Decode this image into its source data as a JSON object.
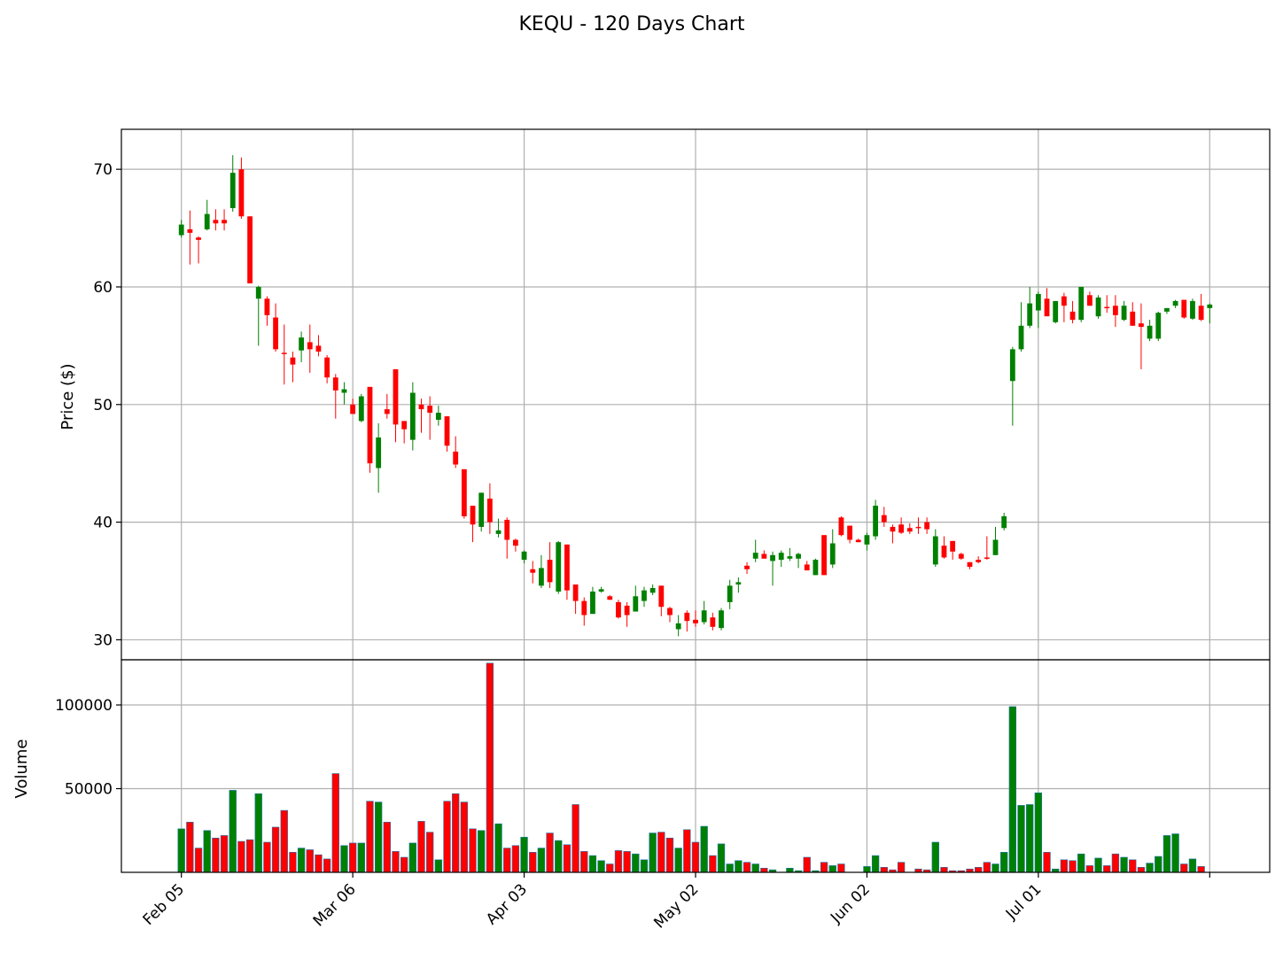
{
  "title": "KEQU - 120 Days Chart",
  "colors": {
    "up": "#008000",
    "down": "#ff0000",
    "grid": "#b0b0b0",
    "volume_edge": "#1f77b4"
  },
  "chart_data": [
    {
      "type": "candlestick",
      "ylabel": "Price ($)",
      "ylim": [
        28.3,
        73.4
      ],
      "yticks": [
        30,
        40,
        50,
        60,
        70
      ],
      "x_range": [
        -7,
        127
      ],
      "xticks": [
        {
          "index": 0,
          "label": "Feb 05"
        },
        {
          "index": 20,
          "label": "Mar 06"
        },
        {
          "index": 40,
          "label": "Apr 03"
        },
        {
          "index": 60,
          "label": "May 02"
        },
        {
          "index": 80,
          "label": "Jun 02"
        },
        {
          "index": 100,
          "label": "Jul 01"
        },
        {
          "index": 120,
          "label": ""
        }
      ],
      "grid": true,
      "ohlc": [
        [
          64.4,
          65.7,
          64.2,
          65.3
        ],
        [
          64.9,
          66.5,
          61.9,
          64.6
        ],
        [
          64.2,
          64.3,
          62.0,
          64.0
        ],
        [
          64.9,
          67.4,
          64.8,
          66.2
        ],
        [
          65.7,
          66.6,
          64.8,
          65.4
        ],
        [
          65.7,
          66.6,
          64.8,
          65.4
        ],
        [
          66.7,
          71.2,
          66.4,
          69.7
        ],
        [
          70.0,
          71.0,
          65.8,
          66.0
        ],
        [
          66.0,
          66.0,
          60.3,
          60.3
        ],
        [
          59.0,
          60.1,
          55.0,
          60.0
        ],
        [
          59.0,
          59.2,
          56.7,
          57.6
        ],
        [
          57.4,
          58.6,
          54.5,
          54.7
        ],
        [
          54.4,
          56.8,
          51.7,
          54.3
        ],
        [
          54.0,
          54.5,
          51.9,
          53.4
        ],
        [
          54.6,
          56.2,
          53.6,
          55.7
        ],
        [
          55.3,
          56.8,
          52.7,
          54.7
        ],
        [
          55.0,
          55.9,
          54.1,
          54.5
        ],
        [
          54.0,
          54.2,
          51.8,
          52.3
        ],
        [
          52.3,
          52.6,
          48.8,
          51.2
        ],
        [
          51.0,
          51.9,
          50.0,
          51.3
        ],
        [
          50.0,
          50.5,
          49.2,
          49.2
        ],
        [
          48.6,
          50.9,
          48.5,
          50.7
        ],
        [
          51.5,
          51.5,
          44.2,
          45.0
        ],
        [
          44.6,
          48.4,
          42.5,
          47.2
        ],
        [
          49.6,
          50.9,
          48.8,
          49.2
        ],
        [
          53.0,
          53.0,
          46.8,
          48.3
        ],
        [
          48.6,
          48.6,
          46.7,
          47.9
        ],
        [
          47.0,
          51.9,
          46.1,
          51.0
        ],
        [
          50.0,
          50.5,
          47.6,
          49.6
        ],
        [
          49.9,
          50.7,
          47.0,
          49.3
        ],
        [
          48.7,
          49.9,
          48.2,
          49.3
        ],
        [
          49.0,
          49.0,
          46.0,
          46.5
        ],
        [
          46.0,
          47.3,
          44.6,
          44.9
        ],
        [
          44.5,
          44.5,
          40.3,
          40.5
        ],
        [
          41.4,
          41.4,
          38.3,
          39.8
        ],
        [
          39.6,
          42.5,
          39.2,
          42.5
        ],
        [
          42.0,
          43.3,
          39.0,
          40.0
        ],
        [
          39.0,
          40.3,
          38.7,
          39.3
        ],
        [
          40.2,
          40.4,
          36.9,
          38.5
        ],
        [
          38.5,
          38.6,
          37.5,
          38.0
        ],
        [
          36.8,
          37.6,
          36.5,
          37.5
        ],
        [
          36.0,
          36.7,
          34.8,
          35.7
        ],
        [
          34.6,
          37.2,
          34.4,
          36.1
        ],
        [
          36.8,
          38.3,
          34.4,
          34.9
        ],
        [
          34.1,
          38.4,
          33.9,
          38.3
        ],
        [
          38.1,
          38.1,
          33.4,
          34.2
        ],
        [
          34.7,
          34.7,
          32.2,
          33.3
        ],
        [
          33.3,
          33.6,
          31.2,
          32.1
        ],
        [
          32.2,
          34.5,
          32.2,
          34.1
        ],
        [
          34.1,
          34.5,
          34.0,
          34.3
        ],
        [
          33.7,
          33.8,
          33.4,
          33.4
        ],
        [
          33.2,
          33.4,
          31.8,
          31.9
        ],
        [
          32.9,
          33.2,
          31.1,
          32.1
        ],
        [
          32.4,
          34.6,
          32.4,
          33.7
        ],
        [
          33.3,
          34.5,
          32.8,
          34.2
        ],
        [
          34.0,
          34.7,
          33.8,
          34.4
        ],
        [
          34.6,
          34.6,
          32.0,
          32.8
        ],
        [
          32.7,
          32.8,
          31.5,
          32.1
        ],
        [
          30.9,
          32.1,
          30.3,
          31.4
        ],
        [
          32.3,
          32.5,
          30.7,
          31.6
        ],
        [
          31.7,
          32.5,
          31.1,
          31.4
        ],
        [
          31.5,
          33.3,
          31.3,
          32.5
        ],
        [
          31.9,
          32.3,
          30.8,
          31.1
        ],
        [
          31.0,
          32.7,
          30.8,
          32.5
        ],
        [
          33.2,
          35.1,
          32.6,
          34.6
        ],
        [
          34.7,
          35.3,
          34.0,
          34.9
        ],
        [
          36.3,
          36.6,
          35.6,
          36.0
        ],
        [
          36.9,
          38.5,
          36.6,
          37.4
        ],
        [
          37.3,
          37.6,
          37.2,
          36.9
        ],
        [
          36.7,
          37.5,
          34.6,
          37.2
        ],
        [
          36.8,
          37.6,
          36.2,
          37.4
        ],
        [
          36.9,
          37.8,
          36.7,
          37.1
        ],
        [
          36.9,
          37.4,
          36.1,
          37.3
        ],
        [
          36.4,
          36.7,
          35.9,
          35.9
        ],
        [
          35.5,
          36.9,
          35.5,
          36.8
        ],
        [
          38.9,
          38.9,
          35.5,
          35.5
        ],
        [
          36.4,
          39.4,
          36.1,
          38.2
        ],
        [
          40.4,
          40.5,
          38.8,
          38.9
        ],
        [
          39.7,
          39.7,
          38.2,
          38.5
        ],
        [
          38.5,
          38.6,
          38.3,
          38.3
        ],
        [
          38.1,
          39.1,
          37.6,
          38.9
        ],
        [
          38.8,
          41.9,
          38.5,
          41.4
        ],
        [
          40.6,
          41.3,
          39.6,
          40.0
        ],
        [
          39.6,
          39.8,
          38.2,
          39.2
        ],
        [
          39.8,
          40.4,
          39.0,
          39.1
        ],
        [
          39.5,
          39.9,
          39.0,
          39.2
        ],
        [
          39.6,
          40.4,
          39.0,
          39.5
        ],
        [
          40.0,
          40.4,
          39.0,
          39.4
        ],
        [
          36.4,
          39.4,
          36.2,
          38.8
        ],
        [
          38.0,
          38.8,
          36.9,
          37.0
        ],
        [
          38.4,
          38.4,
          36.8,
          37.5
        ],
        [
          37.3,
          37.4,
          36.8,
          36.9
        ],
        [
          36.6,
          36.6,
          36.0,
          36.2
        ],
        [
          36.8,
          37.1,
          36.5,
          36.6
        ],
        [
          37.0,
          38.8,
          36.8,
          36.9
        ],
        [
          37.2,
          39.6,
          37.2,
          38.5
        ],
        [
          39.5,
          40.8,
          39.3,
          40.5
        ],
        [
          52.0,
          54.9,
          48.2,
          54.7
        ],
        [
          54.7,
          58.7,
          54.5,
          56.7
        ],
        [
          56.7,
          60.0,
          56.5,
          58.6
        ],
        [
          58.0,
          59.6,
          56.5,
          59.4
        ],
        [
          59.0,
          59.9,
          57.6,
          57.5
        ],
        [
          57.0,
          58.8,
          56.9,
          58.8
        ],
        [
          59.2,
          59.5,
          57.0,
          58.4
        ],
        [
          57.9,
          58.8,
          56.9,
          57.2
        ],
        [
          57.2,
          60.0,
          57.0,
          60.0
        ],
        [
          59.3,
          59.6,
          58.4,
          58.4
        ],
        [
          57.5,
          59.3,
          57.3,
          59.1
        ],
        [
          58.3,
          59.3,
          57.8,
          58.2
        ],
        [
          58.4,
          59.3,
          56.6,
          57.6
        ],
        [
          57.2,
          58.8,
          57.1,
          58.4
        ],
        [
          57.9,
          58.7,
          56.7,
          56.7
        ],
        [
          56.9,
          58.6,
          53.0,
          56.6
        ],
        [
          55.6,
          57.2,
          55.4,
          56.7
        ],
        [
          55.6,
          57.9,
          55.4,
          57.8
        ],
        [
          57.9,
          58.2,
          57.7,
          58.2
        ],
        [
          58.4,
          58.9,
          58.2,
          58.8
        ],
        [
          58.9,
          58.9,
          57.3,
          57.4
        ],
        [
          57.3,
          59.0,
          57.2,
          58.8
        ],
        [
          58.4,
          59.4,
          57.1,
          57.2
        ],
        [
          58.2,
          58.6,
          56.9,
          58.5
        ]
      ]
    },
    {
      "type": "bar",
      "ylabel": "Volume",
      "ylim": [
        0,
        127000
      ],
      "yticks": [
        50000,
        100000
      ],
      "grid": true,
      "values": [
        26000,
        30000,
        14500,
        25000,
        20500,
        22000,
        49000,
        18500,
        19500,
        47000,
        18000,
        27000,
        37000,
        12000,
        14500,
        13500,
        10500,
        8000,
        59000,
        16000,
        17500,
        17500,
        42500,
        42000,
        30000,
        12500,
        9000,
        17500,
        30500,
        24000,
        7500,
        42500,
        47000,
        42000,
        26000,
        25000,
        125000,
        29000,
        14500,
        16000,
        21000,
        12000,
        14500,
        23500,
        19000,
        16500,
        40500,
        12500,
        10000,
        7000,
        5000,
        13000,
        12500,
        11000,
        7500,
        23500,
        24000,
        20500,
        14500,
        25500,
        18000,
        27500,
        10000,
        17000,
        5000,
        7000,
        6000,
        5000,
        2500,
        1500,
        0,
        2500,
        1000,
        9000,
        1000,
        6000,
        4000,
        5000,
        0,
        0,
        3500,
        10000,
        3000,
        1500,
        6000,
        0,
        2000,
        1500,
        18000,
        3000,
        1000,
        1000,
        2000,
        3000,
        6000,
        5000,
        12000,
        99000,
        40000,
        40500,
        47500,
        12000,
        2000,
        7500,
        7000,
        11000,
        4000,
        8500,
        4000,
        11000,
        9000,
        7500,
        3000,
        5500,
        9500,
        22000,
        23000,
        5000,
        8000,
        3500
      ]
    }
  ]
}
